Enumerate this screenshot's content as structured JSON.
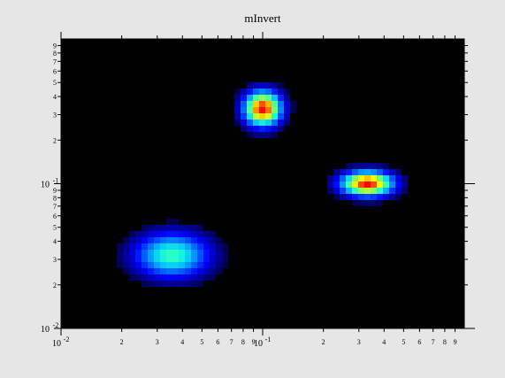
{
  "chart_data": {
    "type": "heatmap",
    "title": "mInvert",
    "xlabel": "",
    "ylabel": "",
    "x_scale": "log",
    "y_scale": "log",
    "xlim": [
      0.01,
      1.0
    ],
    "ylim": [
      0.01,
      1.0
    ],
    "grid": false,
    "colormap": [
      "#000000",
      "#00008f",
      "#0000ff",
      "#0060ff",
      "#00c0ff",
      "#20ffd0",
      "#80ff60",
      "#ffff00",
      "#ff8000",
      "#ff0000"
    ],
    "background_color": "#000000",
    "x_ticks": {
      "major": [
        {
          "value": 0.01,
          "label": "10",
          "exp": "-2"
        },
        {
          "value": 0.1,
          "label": "10",
          "exp": "-1"
        }
      ],
      "minor": [
        {
          "value": 0.02,
          "label": "2"
        },
        {
          "value": 0.03,
          "label": "3"
        },
        {
          "value": 0.04,
          "label": "4"
        },
        {
          "value": 0.05,
          "label": "5"
        },
        {
          "value": 0.06,
          "label": "6"
        },
        {
          "value": 0.07,
          "label": "7"
        },
        {
          "value": 0.08,
          "label": "8"
        },
        {
          "value": 0.09,
          "label": "9"
        },
        {
          "value": 0.2,
          "label": "2"
        },
        {
          "value": 0.3,
          "label": "3"
        },
        {
          "value": 0.4,
          "label": "4"
        },
        {
          "value": 0.5,
          "label": "5"
        },
        {
          "value": 0.6,
          "label": "6"
        },
        {
          "value": 0.7,
          "label": "7"
        },
        {
          "value": 0.8,
          "label": "8"
        },
        {
          "value": 0.9,
          "label": "9"
        }
      ]
    },
    "y_ticks": {
      "major": [
        {
          "value": 0.01,
          "label": "10",
          "exp": "-2"
        },
        {
          "value": 0.1,
          "label": "10",
          "exp": "-1"
        }
      ],
      "minor": [
        {
          "value": 0.02,
          "label": "2"
        },
        {
          "value": 0.03,
          "label": "3"
        },
        {
          "value": 0.04,
          "label": "4"
        },
        {
          "value": 0.05,
          "label": "5"
        },
        {
          "value": 0.06,
          "label": "6"
        },
        {
          "value": 0.07,
          "label": "7"
        },
        {
          "value": 0.08,
          "label": "8"
        },
        {
          "value": 0.09,
          "label": "9"
        },
        {
          "value": 0.2,
          "label": "2"
        },
        {
          "value": 0.3,
          "label": "3"
        },
        {
          "value": 0.4,
          "label": "4"
        },
        {
          "value": 0.5,
          "label": "5"
        },
        {
          "value": 0.6,
          "label": "6"
        },
        {
          "value": 0.7,
          "label": "7"
        },
        {
          "value": 0.8,
          "label": "8"
        },
        {
          "value": 0.9,
          "label": "9"
        }
      ]
    },
    "peaks": [
      {
        "x": 0.0355,
        "y": 0.032,
        "sigma_x_decades": 0.13,
        "sigma_y_decades": 0.11,
        "peak_intensity": 0.58
      },
      {
        "x": 0.1,
        "y": 0.33,
        "sigma_x_decades": 0.065,
        "sigma_y_decades": 0.085,
        "peak_intensity": 1.0
      },
      {
        "x": 0.33,
        "y": 0.1,
        "sigma_x_decades": 0.09,
        "sigma_y_decades": 0.06,
        "peak_intensity": 1.0
      }
    ]
  }
}
